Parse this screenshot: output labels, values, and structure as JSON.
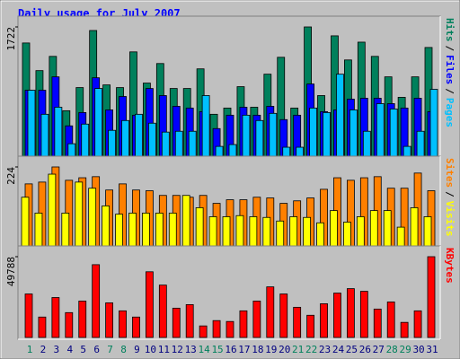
{
  "chart_data": [
    {
      "type": "bar",
      "title": "Daily usage for July 2007",
      "legend_separator": "/",
      "ylim": [
        0,
        1722
      ],
      "yticks": [
        1722
      ],
      "series": [
        {
          "name": "Hits",
          "color": "#00805c",
          "values": [
            1511,
            1148,
            1335,
            621,
            925,
            1675,
            960,
            925,
            1394,
            984,
            1241,
            913,
            913,
            1171,
            574,
            656,
            937,
            667,
            1101,
            1323,
            656,
            1722,
            820,
            1605,
            1288,
            1522,
            1335,
            1066,
            797,
            1066,
            1452
          ]
        },
        {
          "name": "Files",
          "color": "#0000ff",
          "values": [
            890,
            890,
            1066,
            422,
            597,
            1054,
            632,
            808,
            562,
            913,
            820,
            679,
            656,
            609,
            386,
            562,
            667,
            562,
            679,
            504,
            562,
            972,
            609,
            632,
            773,
            785,
            785,
            714,
            656,
            785,
            609
          ]
        },
        {
          "name": "Pages",
          "color": "#00c0ff",
          "values": [
            890,
            574,
            667,
            187,
            445,
            913,
            363,
            492,
            574,
            457,
            340,
            351,
            351,
            820,
            152,
            176,
            562,
            492,
            586,
            141,
            141,
            656,
            597,
            1101,
            632,
            351,
            714,
            644,
            152,
            351,
            902
          ]
        }
      ]
    },
    {
      "type": "bar",
      "legend_separator": "/",
      "ylim": [
        0,
        224
      ],
      "yticks": [
        224
      ],
      "series": [
        {
          "name": "Sites",
          "color": "#ff8000",
          "values": [
            177,
            182,
            224,
            187,
            194,
            197,
            160,
            177,
            160,
            158,
            145,
            145,
            140,
            145,
            123,
            133,
            133,
            140,
            138,
            123,
            130,
            138,
            162,
            194,
            187,
            194,
            197,
            165,
            165,
            207,
            158
          ]
        },
        {
          "name": "Visits",
          "color": "#ffff00",
          "values": [
            140,
            96,
            204,
            96,
            182,
            165,
            116,
            93,
            96,
            96,
            96,
            96,
            145,
            111,
            86,
            86,
            89,
            86,
            84,
            74,
            86,
            84,
            69,
            103,
            71,
            86,
            103,
            103,
            57,
            111,
            86
          ]
        }
      ]
    },
    {
      "type": "bar",
      "ylim": [
        0,
        49788
      ],
      "yticks": [
        49788
      ],
      "categories": [
        "1",
        "2",
        "3",
        "4",
        "5",
        "6",
        "7",
        "8",
        "9",
        "10",
        "11",
        "12",
        "13",
        "14",
        "15",
        "16",
        "17",
        "18",
        "19",
        "20",
        "21",
        "22",
        "23",
        "24",
        "25",
        "26",
        "27",
        "28",
        "29",
        "30",
        "31"
      ],
      "category_colors": [
        "#00805c",
        "#000080",
        "#000080",
        "#000080",
        "#000080",
        "#000080",
        "#00805c",
        "#00805c",
        "#000080",
        "#000080",
        "#000080",
        "#000080",
        "#000080",
        "#00805c",
        "#00805c",
        "#000080",
        "#000080",
        "#000080",
        "#000080",
        "#000080",
        "#00805c",
        "#00805c",
        "#000080",
        "#000080",
        "#000080",
        "#000080",
        "#000080",
        "#00805c",
        "#00805c",
        "#000080",
        "#000080"
      ],
      "series": [
        {
          "name": "KBytes",
          "color": "#ff0000",
          "values": [
            26808,
            12584,
            24620,
            15319,
            22432,
            44864,
            21338,
            16414,
            12584,
            40487,
            32280,
            18055,
            20244,
            7113,
            10395,
            9848,
            16414,
            22432,
            31186,
            26808,
            18602,
            13678,
            20790,
            27356,
            30092,
            28450,
            17508,
            21885,
            9301,
            16414,
            49788
          ]
        }
      ]
    }
  ]
}
